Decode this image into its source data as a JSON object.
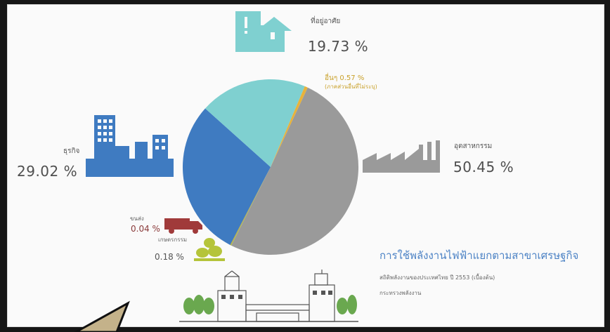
{
  "chart_data": {
    "type": "pie",
    "title": "การใช้พลังงานไฟฟ้าแยกตามสาขาเศรษฐกิจ",
    "subtitle_lines": [
      "สถิติพลังงานของประเทศไทย ปี 2553 (เบื้องต้น)",
      "กระทรวงพลังงาน"
    ],
    "slices": [
      {
        "name": "อุตสาหกรรม",
        "value": 50.45,
        "label": "50.45  %",
        "color": "#9a9a9a"
      },
      {
        "name": "ธุรกิจ",
        "value": 29.02,
        "label": "29.02 %",
        "color": "#3f7bc1"
      },
      {
        "name": "ที่อยู่อาศัย",
        "value": 19.73,
        "label": "19.73 %",
        "color": "#7fd0d0"
      },
      {
        "name": "อื่นๆ",
        "value": 0.57,
        "label": "อื่นๆ 0.57 %",
        "color": "#e8b23a"
      },
      {
        "name": "เกษตร",
        "value": 0.18,
        "label": "0.18 %",
        "color": "#b5c43a"
      },
      {
        "name": "ขนส่ง",
        "value": 0.04,
        "label": "0.04 %",
        "color": "#a03a3a"
      }
    ]
  },
  "labels": {
    "industry_name": "อุตสาหกรรม",
    "business_name": "ธุรกิจ",
    "residential_name": "ที่อยู่อาศัย",
    "other_note": "(ภาคส่วนอื่นที่ไม่ระบุ)",
    "transport_name": "ขนส่ง",
    "agriculture_name": "เกษตรกรรม"
  },
  "colors": {
    "industry": "#9a9a9a",
    "business": "#3f7bc1",
    "residential": "#7fd0d0",
    "other": "#e8b23a",
    "agriculture": "#b5c43a",
    "transport": "#a03a3a",
    "title": "#4d83c5"
  }
}
